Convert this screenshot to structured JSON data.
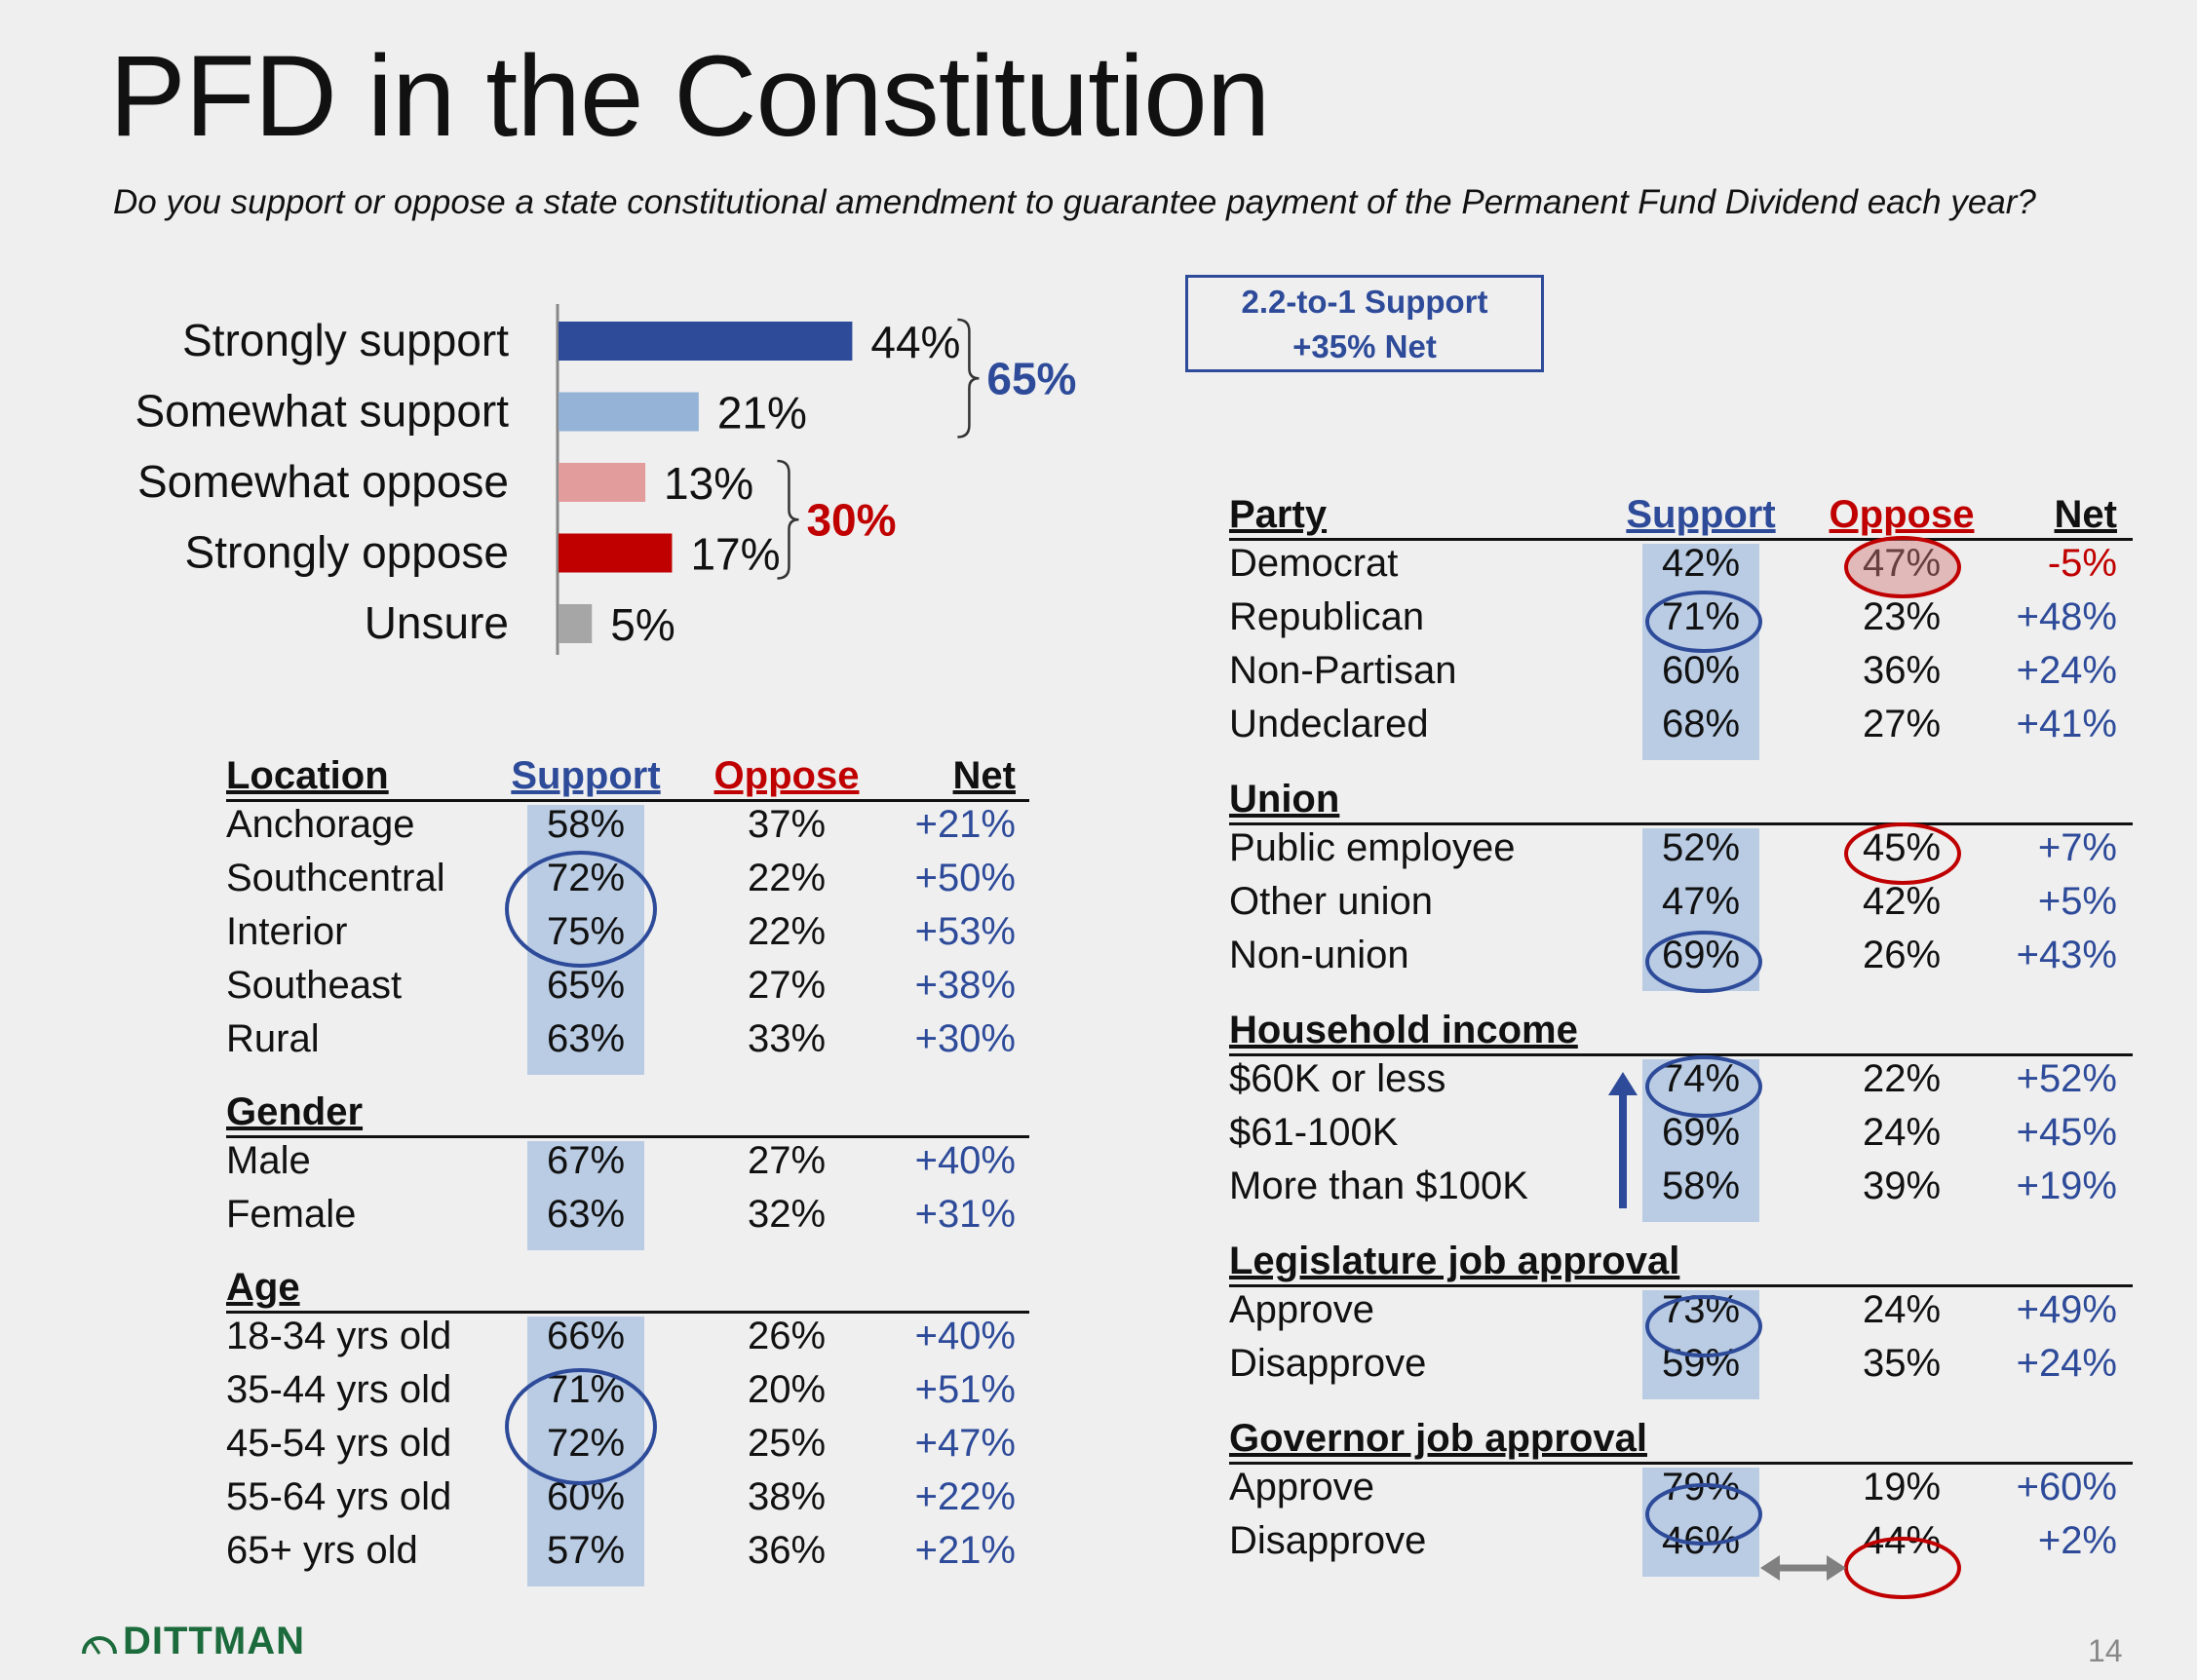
{
  "title": "PFD in the Constitution",
  "question": "Do you support or oppose a state constitutional amendment to guarantee payment of the Permanent Fund Dividend each year?",
  "callout": {
    "line1": "2.2-to-1 Support",
    "line2": "+35% Net"
  },
  "chart_data": {
    "type": "bar",
    "orientation": "horizontal",
    "categories": [
      "Strongly support",
      "Somewhat support",
      "Somewhat oppose",
      "Strongly oppose",
      "Unsure"
    ],
    "values": [
      44,
      21,
      13,
      17,
      5
    ],
    "value_labels": [
      "44%",
      "21%",
      "13%",
      "17%",
      "5%"
    ],
    "colors": [
      "#2e4b9a",
      "#95b3d7",
      "#e39c9c",
      "#c00000",
      "#a6a6a6"
    ],
    "groups": [
      {
        "label": "65%",
        "members": [
          "Strongly support",
          "Somewhat support"
        ],
        "color": "#2e4b9a"
      },
      {
        "label": "30%",
        "members": [
          "Somewhat oppose",
          "Strongly oppose"
        ],
        "color": "#c00000"
      }
    ]
  },
  "left_table": {
    "col_support": "Support",
    "col_oppose": "Oppose",
    "col_net": "Net",
    "sections": [
      {
        "header": "Location",
        "rows": [
          {
            "label": "Anchorage",
            "support": "58%",
            "oppose": "37%",
            "net": "+21%"
          },
          {
            "label": "Southcentral",
            "support": "72%",
            "oppose": "22%",
            "net": "+50%"
          },
          {
            "label": "Interior",
            "support": "75%",
            "oppose": "22%",
            "net": "+53%"
          },
          {
            "label": "Southeast",
            "support": "65%",
            "oppose": "27%",
            "net": "+38%"
          },
          {
            "label": "Rural",
            "support": "63%",
            "oppose": "33%",
            "net": "+30%"
          }
        ]
      },
      {
        "header": "Gender",
        "rows": [
          {
            "label": "Male",
            "support": "67%",
            "oppose": "27%",
            "net": "+40%"
          },
          {
            "label": "Female",
            "support": "63%",
            "oppose": "32%",
            "net": "+31%"
          }
        ]
      },
      {
        "header": "Age",
        "rows": [
          {
            "label": "18-34 yrs old",
            "support": "66%",
            "oppose": "26%",
            "net": "+40%"
          },
          {
            "label": "35-44 yrs old",
            "support": "71%",
            "oppose": "20%",
            "net": "+51%"
          },
          {
            "label": "45-54 yrs old",
            "support": "72%",
            "oppose": "25%",
            "net": "+47%"
          },
          {
            "label": "55-64 yrs old",
            "support": "60%",
            "oppose": "38%",
            "net": "+22%"
          },
          {
            "label": "65+ yrs old",
            "support": "57%",
            "oppose": "36%",
            "net": "+21%"
          }
        ]
      }
    ]
  },
  "right_table": {
    "col_support": "Support",
    "col_oppose": "Oppose",
    "col_net": "Net",
    "sections": [
      {
        "header": "Party",
        "rows": [
          {
            "label": "Democrat",
            "support": "42%",
            "oppose": "47%",
            "net": "-5%"
          },
          {
            "label": "Republican",
            "support": "71%",
            "oppose": "23%",
            "net": "+48%"
          },
          {
            "label": "Non-Partisan",
            "support": "60%",
            "oppose": "36%",
            "net": "+24%"
          },
          {
            "label": "Undeclared",
            "support": "68%",
            "oppose": "27%",
            "net": "+41%"
          }
        ]
      },
      {
        "header": "Union",
        "rows": [
          {
            "label": "Public employee",
            "support": "52%",
            "oppose": "45%",
            "net": "+7%"
          },
          {
            "label": "Other union",
            "support": "47%",
            "oppose": "42%",
            "net": "+5%"
          },
          {
            "label": "Non-union",
            "support": "69%",
            "oppose": "26%",
            "net": "+43%"
          }
        ]
      },
      {
        "header": "Household income",
        "rows": [
          {
            "label": "$60K or less",
            "support": "74%",
            "oppose": "22%",
            "net": "+52%"
          },
          {
            "label": "$61-100K",
            "support": "69%",
            "oppose": "24%",
            "net": "+45%"
          },
          {
            "label": "More than $100K",
            "support": "58%",
            "oppose": "39%",
            "net": "+19%"
          }
        ]
      },
      {
        "header": "Legislature job approval",
        "rows": [
          {
            "label": "Approve",
            "support": "73%",
            "oppose": "24%",
            "net": "+49%"
          },
          {
            "label": "Disapprove",
            "support": "59%",
            "oppose": "35%",
            "net": "+24%"
          }
        ]
      },
      {
        "header": "Governor job approval",
        "rows": [
          {
            "label": "Approve",
            "support": "79%",
            "oppose": "19%",
            "net": "+60%"
          },
          {
            "label": "Disapprove",
            "support": "46%",
            "oppose": "44%",
            "net": "+2%"
          }
        ]
      }
    ]
  },
  "logo": "DITTMAN",
  "page_number": "14"
}
